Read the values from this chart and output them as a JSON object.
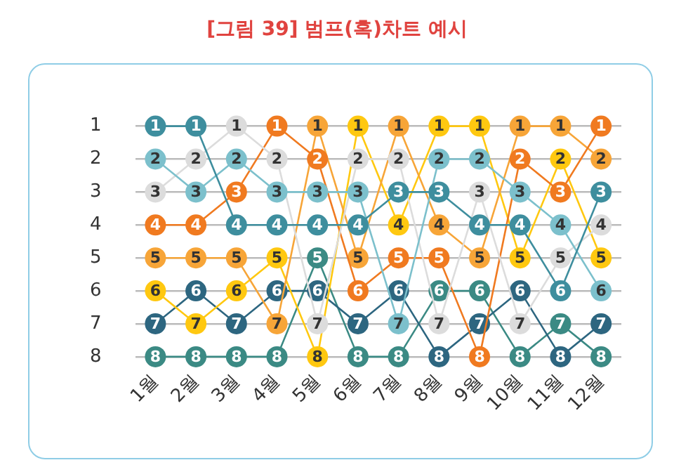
{
  "chart_data": {
    "type": "line",
    "title": "[그림 39] 범프(혹)차트 예시",
    "categories": [
      "1월",
      "2월",
      "3월",
      "4월",
      "5월",
      "6월",
      "7월",
      "8월",
      "9월",
      "10월",
      "11월",
      "12월"
    ],
    "series": [
      {
        "color": "#3e8e9e",
        "values": [
          1,
          1,
          4,
          4,
          4,
          4,
          3,
          3,
          4,
          4,
          6,
          3
        ]
      },
      {
        "color": "#7cc0cc",
        "values": [
          2,
          3,
          2,
          3,
          3,
          3,
          7,
          2,
          2,
          3,
          4,
          6
        ]
      },
      {
        "color": "#dcdcdc",
        "values": [
          3,
          2,
          1,
          2,
          7,
          2,
          2,
          7,
          3,
          7,
          5,
          4
        ]
      },
      {
        "color": "#f07a20",
        "values": [
          4,
          4,
          3,
          1,
          2,
          6,
          5,
          5,
          8,
          2,
          3,
          1
        ]
      },
      {
        "color": "#f7a538",
        "values": [
          5,
          5,
          5,
          7,
          1,
          5,
          1,
          4,
          5,
          1,
          1,
          2
        ]
      },
      {
        "color": "#ffc810",
        "values": [
          6,
          7,
          6,
          5,
          8,
          1,
          4,
          1,
          1,
          5,
          2,
          5
        ]
      },
      {
        "color": "#2d6680",
        "values": [
          7,
          6,
          7,
          6,
          6,
          7,
          6,
          8,
          7,
          6,
          8,
          7
        ]
      },
      {
        "color": "#3b8a84",
        "values": [
          8,
          8,
          8,
          8,
          5,
          8,
          8,
          6,
          6,
          8,
          7,
          8
        ]
      }
    ],
    "ylim": [
      8,
      1
    ],
    "yticks": [
      1,
      2,
      3,
      4,
      5,
      6,
      7,
      8
    ],
    "grid": "y",
    "data_labels": true,
    "marker": "circle",
    "line_style": "solid"
  }
}
